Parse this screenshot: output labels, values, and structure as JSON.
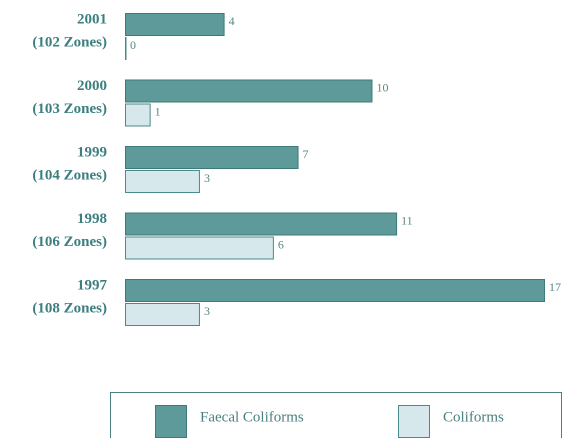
{
  "chart_data": {
    "type": "bar",
    "orientation": "horizontal",
    "categories": [
      [
        "2001",
        "(102 Zones)"
      ],
      [
        "2000",
        "(103 Zones)"
      ],
      [
        "1999",
        "(104 Zones)"
      ],
      [
        "1998",
        "(106 Zones)"
      ],
      [
        "1997",
        "(108 Zones)"
      ]
    ],
    "series": [
      {
        "name": "Faecal Coliforms",
        "color": "#5f9a9b",
        "values": [
          4,
          10,
          7,
          11,
          17
        ]
      },
      {
        "name": "Coliforms",
        "color": "#d6e8ec",
        "values": [
          0,
          1,
          3,
          6,
          3
        ]
      }
    ],
    "xlim": [
      0,
      17
    ]
  }
}
